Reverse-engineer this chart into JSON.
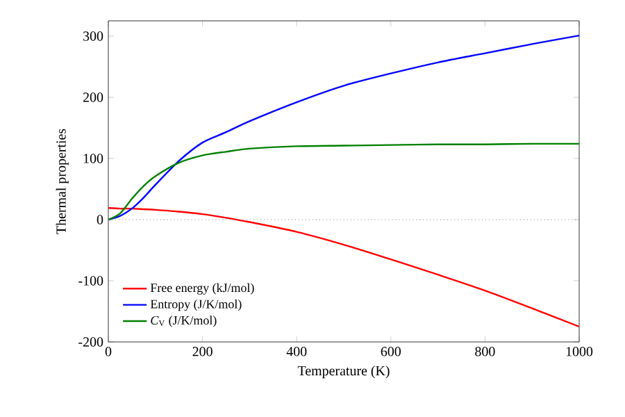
{
  "chart_data": {
    "type": "line",
    "xlabel": "Temperature (K)",
    "ylabel": "Thermal properties",
    "xlim": [
      0,
      1000
    ],
    "ylim": [
      -200,
      325
    ],
    "xticks": [
      0,
      200,
      400,
      600,
      800,
      1000
    ],
    "yticks": [
      -200,
      -100,
      0,
      100,
      200,
      300
    ],
    "grid": false,
    "legend": "bottom left",
    "marker": "none",
    "line_style": "solid",
    "x": [
      0,
      25,
      50,
      75,
      100,
      150,
      200,
      250,
      300,
      400,
      500,
      600,
      700,
      800,
      900,
      1000
    ],
    "series": [
      {
        "name": "Free energy (kJ/mol)",
        "color": "#ff0000",
        "values": [
          19,
          18,
          18,
          17,
          16,
          13,
          9,
          3,
          -4,
          -20,
          -41,
          -65,
          -90,
          -116,
          -145,
          -175
        ]
      },
      {
        "name": "Entropy (J/K/mol)",
        "color": "#0000ff",
        "values": [
          0,
          6,
          18,
          36,
          57,
          96,
          126,
          143,
          161,
          192,
          219,
          239,
          257,
          272,
          287,
          301
        ]
      },
      {
        "name": "*C*$_{V}$ (J/K/mol)",
        "color": "#008000",
        "values": [
          0,
          10,
          34,
          55,
          71,
          93,
          105,
          111,
          116,
          120,
          121,
          122,
          123,
          123,
          124,
          124
        ]
      }
    ],
    "ref_lines": [
      {
        "axis": "y",
        "value": 0,
        "color": "#808080",
        "line_style": "dotted"
      }
    ]
  }
}
